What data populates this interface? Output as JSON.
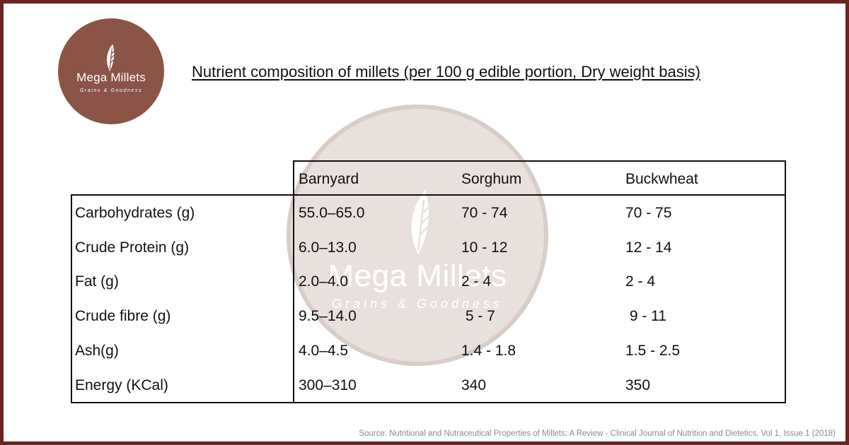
{
  "logo": {
    "brand": "Mega Millets",
    "tagline": "Grains & Goodness",
    "icon": "wheat-leaf-icon",
    "color": "#8b5446"
  },
  "watermark": {
    "brand": "Mega Millets",
    "tagline": "Grains & Goodness",
    "icon": "wheat-leaf-icon"
  },
  "title": "Nutrient composition of millets (per 100 g edible portion, Dry weight basis)",
  "table": {
    "columns": [
      "Barnyard",
      "Sorghum",
      "Buckwheat"
    ],
    "rows": [
      {
        "label": "Carbohydrates (g)",
        "values": [
          "55.0–65.0",
          "70 - 74",
          "70 - 75"
        ]
      },
      {
        "label": "Crude Protein (g)",
        "values": [
          "6.0–13.0",
          "10 - 12",
          "12 - 14"
        ]
      },
      {
        "label": "Fat (g)",
        "values": [
          "2.0–4.0",
          "2 - 4",
          "2 - 4"
        ]
      },
      {
        "label": "Crude fibre (g)",
        "values": [
          "9.5–14.0",
          " 5 - 7",
          " 9 - 11"
        ]
      },
      {
        "label": "Ash(g)",
        "values": [
          "4.0–4.5",
          "1.4 - 1.8",
          "1.5 - 2.5"
        ]
      },
      {
        "label": "Energy (KCal)",
        "values": [
          "300–310",
          "340",
          "350"
        ]
      }
    ]
  },
  "source": "Source: Nutritional and Nutraceutical Properties of Millets: A Review - Clinical Journal of Nutrition and Dietetics, Vol 1, Issue 1 (2018)",
  "colors": {
    "border": "#6b241f",
    "logo": "#8b5446",
    "watermark": "#e8e0dc"
  }
}
